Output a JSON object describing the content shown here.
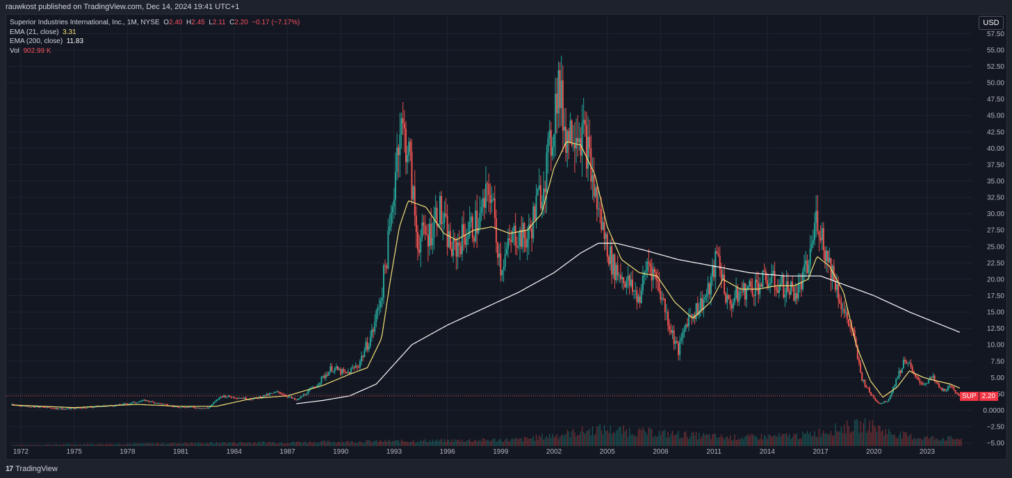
{
  "header": {
    "published": "rauwkost published on TradingView.com, Dec 14, 2024 19:41 UTC+1"
  },
  "legend": {
    "title": "Superior Industries International, Inc., 1M, NYSE",
    "o_label": "O",
    "o": "2.40",
    "h_label": "H",
    "h": "2.45",
    "l_label": "L",
    "l": "2.11",
    "c_label": "C",
    "c": "2.20",
    "change": "−0.17 (−7.17%)",
    "ema21_label": "EMA (21, close)",
    "ema21_value": "3.31",
    "ema200_label": "EMA (200, close)",
    "ema200_value": "11.83",
    "vol_label": "Vol",
    "vol_value": "902.99 K"
  },
  "currency": "USD",
  "last_price": {
    "symbol": "SUP",
    "value": "2.20"
  },
  "footer": {
    "brand": "TradingView"
  },
  "colors": {
    "background": "#131722",
    "up": "#26a69a",
    "down": "#ef5350",
    "ema21": "#f6e27a",
    "ema200": "#ffffff",
    "grid": "#1f2431",
    "text": "#b2b5be"
  },
  "chart_data": {
    "type": "candlestick",
    "interval": "1M",
    "title": "Superior Industries International, Inc., 1M, NYSE",
    "y_ticks": [
      "57.50",
      "55.00",
      "52.50",
      "50.00",
      "47.50",
      "45.00",
      "42.50",
      "40.00",
      "37.50",
      "35.00",
      "32.50",
      "30.00",
      "27.50",
      "25.00",
      "22.50",
      "20.00",
      "17.50",
      "15.00",
      "12.50",
      "10.00",
      "7.50",
      "5.00",
      "2.50",
      "0.0000",
      "−2.50",
      "−5.00"
    ],
    "x_ticks": [
      "1972",
      "1975",
      "1978",
      "1981",
      "1984",
      "1987",
      "1990",
      "1993",
      "1996",
      "1999",
      "2002",
      "2005",
      "2008",
      "2011",
      "2014",
      "2017",
      "2020",
      "2023"
    ],
    "ylim": [
      -5,
      58
    ],
    "price_path": [
      [
        1971.5,
        0.8
      ],
      [
        1974.5,
        0.2
      ],
      [
        1977.5,
        0.8
      ],
      [
        1979.0,
        1.5
      ],
      [
        1980.5,
        0.6
      ],
      [
        1982.5,
        0.3
      ],
      [
        1983.3,
        2.2
      ],
      [
        1985.0,
        1.7
      ],
      [
        1986.5,
        2.8
      ],
      [
        1987.5,
        1.5
      ],
      [
        1988.5,
        3.5
      ],
      [
        1989.5,
        6.5
      ],
      [
        1990.3,
        5.5
      ],
      [
        1991.0,
        7.0
      ],
      [
        1991.8,
        12.0
      ],
      [
        1992.3,
        18.0
      ],
      [
        1992.8,
        28.0
      ],
      [
        1993.3,
        44.0
      ],
      [
        1993.8,
        40.0
      ],
      [
        1994.3,
        26.0
      ],
      [
        1995.0,
        27.0
      ],
      [
        1995.5,
        31.0
      ],
      [
        1996.3,
        24.0
      ],
      [
        1997.0,
        27.0
      ],
      [
        1997.8,
        29.0
      ],
      [
        1998.4,
        34.0
      ],
      [
        1999.0,
        22.0
      ],
      [
        1999.8,
        27.0
      ],
      [
        2000.5,
        26.0
      ],
      [
        2001.3,
        34.0
      ],
      [
        2001.8,
        40.0
      ],
      [
        2002.2,
        50.0
      ],
      [
        2002.7,
        42.0
      ],
      [
        2003.2,
        44.0
      ],
      [
        2003.8,
        41.0
      ],
      [
        2004.3,
        33.0
      ],
      [
        2004.8,
        27.0
      ],
      [
        2005.3,
        22.0
      ],
      [
        2006.0,
        20.0
      ],
      [
        2006.8,
        17.0
      ],
      [
        2007.3,
        23.0
      ],
      [
        2007.9,
        19.0
      ],
      [
        2008.5,
        13.0
      ],
      [
        2009.0,
        9.0
      ],
      [
        2009.5,
        14.0
      ],
      [
        2010.2,
        16.0
      ],
      [
        2010.7,
        18.0
      ],
      [
        2011.2,
        24.0
      ],
      [
        2011.8,
        16.0
      ],
      [
        2012.5,
        18.0
      ],
      [
        2013.3,
        19.0
      ],
      [
        2014.0,
        20.0
      ],
      [
        2014.8,
        19.0
      ],
      [
        2015.7,
        18.0
      ],
      [
        2016.3,
        22.0
      ],
      [
        2016.8,
        30.0
      ],
      [
        2017.3,
        24.0
      ],
      [
        2017.8,
        20.0
      ],
      [
        2018.3,
        15.0
      ],
      [
        2018.8,
        12.0
      ],
      [
        2019.3,
        5.0
      ],
      [
        2019.8,
        2.5
      ],
      [
        2020.3,
        1.0
      ],
      [
        2020.8,
        1.5
      ],
      [
        2021.3,
        5.0
      ],
      [
        2021.8,
        8.0
      ],
      [
        2022.3,
        5.0
      ],
      [
        2022.8,
        4.0
      ],
      [
        2023.3,
        5.0
      ],
      [
        2023.8,
        3.0
      ],
      [
        2024.3,
        3.5
      ],
      [
        2024.9,
        2.2
      ]
    ],
    "ema21_path": [
      [
        1971.5,
        0.8
      ],
      [
        1975.0,
        0.4
      ],
      [
        1978.5,
        0.9
      ],
      [
        1981.0,
        0.6
      ],
      [
        1983.0,
        0.6
      ],
      [
        1985.0,
        1.8
      ],
      [
        1987.0,
        2.2
      ],
      [
        1989.0,
        3.8
      ],
      [
        1990.5,
        5.5
      ],
      [
        1991.5,
        6.5
      ],
      [
        1992.3,
        11.0
      ],
      [
        1992.8,
        20.0
      ],
      [
        1993.3,
        28.0
      ],
      [
        1993.8,
        32.0
      ],
      [
        1994.8,
        31.0
      ],
      [
        1995.8,
        27.0
      ],
      [
        1996.5,
        26.0
      ],
      [
        1997.5,
        27.5
      ],
      [
        1998.5,
        28.0
      ],
      [
        1999.5,
        27.0
      ],
      [
        2000.5,
        27.5
      ],
      [
        2001.3,
        30.0
      ],
      [
        2002.0,
        37.0
      ],
      [
        2002.7,
        41.0
      ],
      [
        2003.5,
        40.5
      ],
      [
        2004.3,
        36.0
      ],
      [
        2005.0,
        28.0
      ],
      [
        2005.8,
        23.0
      ],
      [
        2006.8,
        21.0
      ],
      [
        2007.8,
        20.5
      ],
      [
        2008.8,
        16.5
      ],
      [
        2009.8,
        14.0
      ],
      [
        2010.8,
        16.5
      ],
      [
        2011.5,
        20.0
      ],
      [
        2012.5,
        18.5
      ],
      [
        2013.5,
        18.5
      ],
      [
        2014.5,
        19.0
      ],
      [
        2015.5,
        19.0
      ],
      [
        2016.3,
        20.0
      ],
      [
        2016.8,
        23.5
      ],
      [
        2017.5,
        22.0
      ],
      [
        2018.3,
        18.0
      ],
      [
        2019.0,
        10.0
      ],
      [
        2019.8,
        4.5
      ],
      [
        2020.5,
        2.0
      ],
      [
        2021.3,
        3.5
      ],
      [
        2022.0,
        6.0
      ],
      [
        2022.8,
        5.0
      ],
      [
        2023.5,
        4.5
      ],
      [
        2024.3,
        4.0
      ],
      [
        2024.9,
        3.31
      ]
    ],
    "ema200_path": [
      [
        1987.5,
        1.0
      ],
      [
        1989.0,
        1.5
      ],
      [
        1990.5,
        2.2
      ],
      [
        1992.0,
        4.0
      ],
      [
        1993.0,
        7.0
      ],
      [
        1994.0,
        10.0
      ],
      [
        1996.0,
        13.0
      ],
      [
        1998.0,
        15.5
      ],
      [
        2000.0,
        18.0
      ],
      [
        2002.0,
        21.0
      ],
      [
        2003.5,
        24.0
      ],
      [
        2004.5,
        25.5
      ],
      [
        2005.5,
        25.5
      ],
      [
        2007.0,
        24.5
      ],
      [
        2009.0,
        23.0
      ],
      [
        2011.0,
        22.0
      ],
      [
        2013.0,
        21.0
      ],
      [
        2015.0,
        20.5
      ],
      [
        2017.0,
        20.5
      ],
      [
        2018.5,
        19.0
      ],
      [
        2020.0,
        17.5
      ],
      [
        2022.0,
        15.0
      ],
      [
        2024.9,
        11.83
      ]
    ],
    "volume_path": [
      [
        1971.5,
        0.05
      ],
      [
        1983.0,
        0.15
      ],
      [
        1990.0,
        0.2
      ],
      [
        1995.0,
        0.25
      ],
      [
        2000.0,
        0.3
      ],
      [
        2002.0,
        0.5
      ],
      [
        2004.5,
        0.8
      ],
      [
        2008.0,
        0.6
      ],
      [
        2012.0,
        0.4
      ],
      [
        2016.0,
        0.5
      ],
      [
        2018.5,
        0.9
      ],
      [
        2019.8,
        1.0
      ],
      [
        2021.0,
        0.6
      ],
      [
        2022.5,
        0.4
      ],
      [
        2024.9,
        0.35
      ]
    ],
    "last_price": 2.2,
    "grid": true,
    "legend_position": "top-left"
  }
}
